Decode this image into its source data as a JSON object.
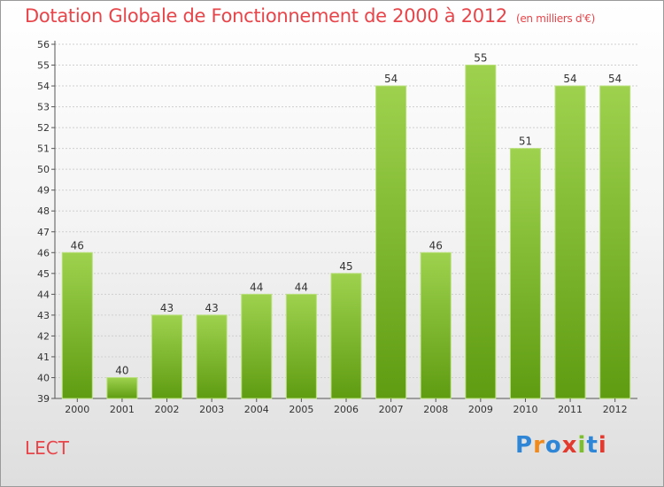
{
  "title": "Dotation Globale de Fonctionnement de 2000 à 2012",
  "unit": "(en milliers d'€)",
  "commune": "LECT",
  "brand": {
    "letters": [
      "P",
      "r",
      "o",
      "x",
      "i",
      "t",
      "i"
    ],
    "colors": [
      "#2f86d6",
      "#f08a1c",
      "#2f86d6",
      "#e23a2e",
      "#7bbf2a",
      "#2f86d6",
      "#e23a2e"
    ]
  },
  "colors": {
    "bar_top": "#9ed24e",
    "bar_bottom": "#5f9c12",
    "title": "#e8454a",
    "grid": "#cfcfcf"
  },
  "chart_data": {
    "type": "bar",
    "title": "Dotation Globale de Fonctionnement de 2000 à 2012",
    "categories": [
      "2000",
      "2001",
      "2002",
      "2003",
      "2004",
      "2005",
      "2006",
      "2007",
      "2008",
      "2009",
      "2010",
      "2011",
      "2012"
    ],
    "values": [
      46,
      40,
      43,
      43,
      44,
      44,
      45,
      54,
      46,
      55,
      51,
      54,
      54
    ],
    "ylim": [
      39,
      56
    ],
    "yticks": [
      39,
      40,
      41,
      42,
      43,
      44,
      45,
      46,
      47,
      48,
      49,
      50,
      51,
      52,
      53,
      54,
      55,
      56
    ],
    "xlabel": "",
    "ylabel": "",
    "grid": true
  }
}
